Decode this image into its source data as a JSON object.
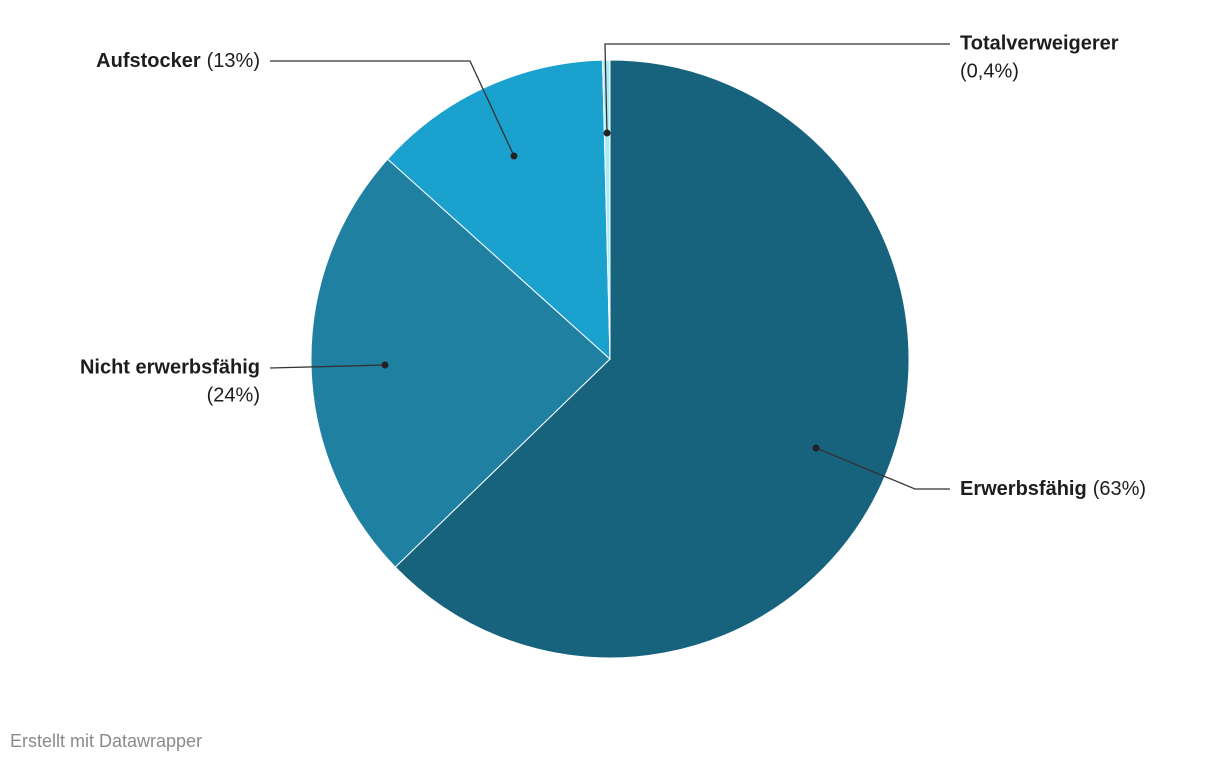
{
  "chart_data": {
    "type": "pie",
    "categories": [
      "Erwerbsfähig",
      "Nicht erwerbsfähig",
      "Aufstocker",
      "Totalverweigerer"
    ],
    "values": [
      63,
      24,
      13,
      0.4
    ],
    "value_labels": [
      "(63%)",
      "(24%)",
      "(13%)",
      "(0,4%)"
    ],
    "colors": [
      "#17627c",
      "#1f80a2",
      "#1ba1ce",
      "#a9ecf8"
    ],
    "credit": "Erstellt mit Datawrapper"
  }
}
